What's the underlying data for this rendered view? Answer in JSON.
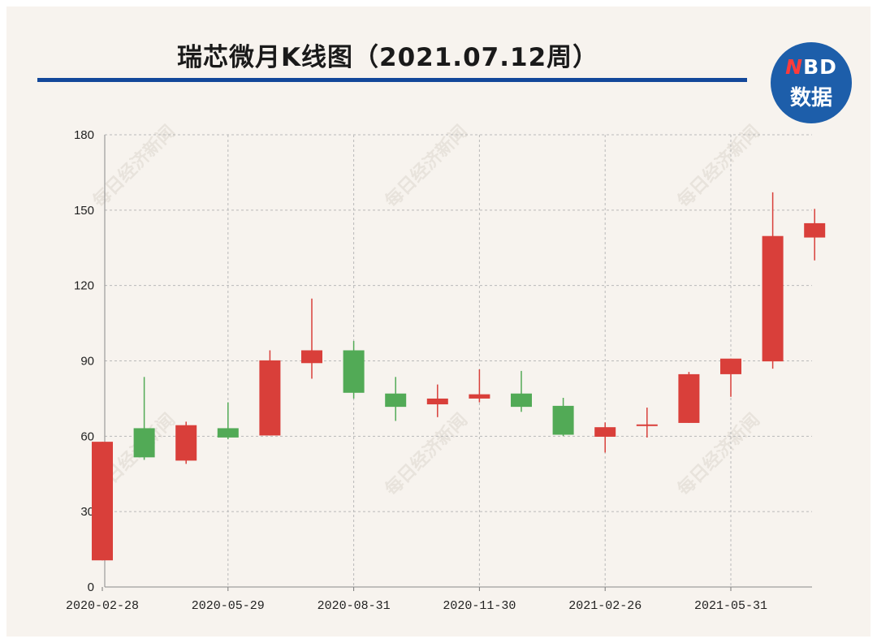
{
  "title": "瑞芯微月K线图（2021.07.12周）",
  "logo": {
    "brand_prefix": "N",
    "brand_rest": "BD",
    "subtitle": "数据"
  },
  "watermark": "每日经济新闻",
  "colors": {
    "up": "#d93f3a",
    "down": "#52aa56",
    "title_rule": "#13489a",
    "logo_bg": "#1d5eaa",
    "background": "#f7f3ee",
    "grid": "#b9b9b9"
  },
  "chart_data": {
    "type": "candlestick",
    "title": "瑞芯微月K线图（2021.07.12周）",
    "xlabel": "",
    "ylabel": "",
    "ylim": [
      0,
      180
    ],
    "yticks": [
      0,
      30,
      60,
      90,
      120,
      150,
      180
    ],
    "xtick_labels": [
      "2020-02-28",
      "2020-05-29",
      "2020-08-31",
      "2020-11-30",
      "2021-02-26",
      "2021-05-31"
    ],
    "grid": true,
    "candles": [
      {
        "date": "2020-02-28",
        "open": 10.6,
        "close": 57.8,
        "high": 57.8,
        "low": 10.6
      },
      {
        "date": "2020-03-31",
        "open": 63.2,
        "close": 51.6,
        "high": 83.6,
        "low": 50.6
      },
      {
        "date": "2020-04-30",
        "open": 50.3,
        "close": 64.4,
        "high": 65.8,
        "low": 49.0
      },
      {
        "date": "2020-05-29",
        "open": 63.2,
        "close": 59.5,
        "high": 73.5,
        "low": 58.8
      },
      {
        "date": "2020-06-30",
        "open": 60.3,
        "close": 90.2,
        "high": 94.2,
        "low": 60.3
      },
      {
        "date": "2020-07-31",
        "open": 89.1,
        "close": 94.2,
        "high": 114.8,
        "low": 82.9
      },
      {
        "date": "2020-08-31",
        "open": 94.2,
        "close": 77.3,
        "high": 97.9,
        "low": 75.0
      },
      {
        "date": "2020-09-30",
        "open": 77.0,
        "close": 71.7,
        "high": 83.6,
        "low": 66.1
      },
      {
        "date": "2020-10-30",
        "open": 72.7,
        "close": 75.0,
        "high": 80.6,
        "low": 67.6
      },
      {
        "date": "2020-11-30",
        "open": 75.0,
        "close": 76.7,
        "high": 86.6,
        "low": 73.5
      },
      {
        "date": "2020-12-31",
        "open": 77.0,
        "close": 71.7,
        "high": 86.0,
        "low": 69.7
      },
      {
        "date": "2021-01-29",
        "open": 72.1,
        "close": 60.6,
        "high": 75.3,
        "low": 60.1
      },
      {
        "date": "2021-02-26",
        "open": 59.8,
        "close": 63.6,
        "high": 65.5,
        "low": 53.5
      },
      {
        "date": "2021-03-31",
        "open": 64.1,
        "close": 64.7,
        "high": 71.4,
        "low": 59.5
      },
      {
        "date": "2021-04-30",
        "open": 65.3,
        "close": 84.7,
        "high": 85.6,
        "low": 65.3
      },
      {
        "date": "2021-05-31",
        "open": 84.7,
        "close": 90.9,
        "high": 90.9,
        "low": 75.7
      },
      {
        "date": "2021-06-30",
        "open": 89.8,
        "close": 139.7,
        "high": 157.1,
        "low": 86.9
      },
      {
        "date": "2021-07-12",
        "open": 139.1,
        "close": 144.8,
        "high": 150.5,
        "low": 130.0
      }
    ]
  }
}
